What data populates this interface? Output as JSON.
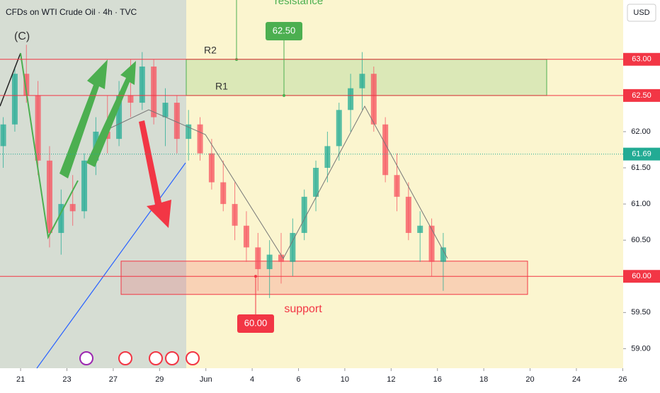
{
  "chart_data": {
    "type": "candlestick",
    "title": "CFDs on WTI Crude Oil · 4h · TVC",
    "currency": "USD",
    "wave_label": "(C)",
    "x": [
      -0.75,
      -0.25,
      0.25,
      0.75,
      1.25,
      1.75,
      2.25,
      2.75,
      3.25,
      3.75,
      4.25,
      4.75,
      5.25,
      5.75,
      6.25,
      6.75,
      7.25,
      7.75,
      8.25,
      8.75,
      9.25,
      9.75,
      10.25,
      10.75,
      11.25,
      11.75,
      12.25,
      12.75,
      13.25,
      13.75,
      14.25,
      14.75,
      15.25,
      15.75,
      16.25,
      16.75,
      17.25,
      17.75,
      18.25
    ],
    "open": [
      61.8,
      62.1,
      62.8,
      62.5,
      61.6,
      60.6,
      61.0,
      60.9,
      61.6,
      62.0,
      61.9,
      62.5,
      62.4,
      62.9,
      62.2,
      62.4,
      61.9,
      62.1,
      61.7,
      61.3,
      61.0,
      60.7,
      60.4,
      60.1,
      60.3,
      60.2,
      60.6,
      61.1,
      61.5,
      61.8,
      62.3,
      62.6,
      62.8,
      62.1,
      61.4,
      61.1,
      60.6,
      60.7,
      60.2
    ],
    "high": [
      62.2,
      62.9,
      63.2,
      62.7,
      61.8,
      61.2,
      61.4,
      61.7,
      62.2,
      62.5,
      62.7,
      63.0,
      63.1,
      63.0,
      62.6,
      62.5,
      62.3,
      62.2,
      61.9,
      61.6,
      61.3,
      60.9,
      60.6,
      60.5,
      60.6,
      60.8,
      61.2,
      61.6,
      62.0,
      62.4,
      62.8,
      63.1,
      62.9,
      62.2,
      61.7,
      61.3,
      60.9,
      60.8,
      60.6
    ],
    "low": [
      61.5,
      62.0,
      62.4,
      61.4,
      60.4,
      60.3,
      60.7,
      60.8,
      61.4,
      61.7,
      61.8,
      62.2,
      62.3,
      62.1,
      61.8,
      61.7,
      61.6,
      61.6,
      61.2,
      60.9,
      60.5,
      60.2,
      59.8,
      59.7,
      59.9,
      60.0,
      60.5,
      60.9,
      61.3,
      61.6,
      62.0,
      62.3,
      62.0,
      61.3,
      60.9,
      60.5,
      60.2,
      60.0,
      59.8
    ],
    "close": [
      62.1,
      62.8,
      62.5,
      61.6,
      60.6,
      61.0,
      60.9,
      61.6,
      62.0,
      61.9,
      62.5,
      62.4,
      62.9,
      62.2,
      62.4,
      61.9,
      62.1,
      61.7,
      61.3,
      61.0,
      60.7,
      60.4,
      60.1,
      60.3,
      60.2,
      60.6,
      61.1,
      61.5,
      61.8,
      62.3,
      62.6,
      62.8,
      62.1,
      61.4,
      61.1,
      60.6,
      60.7,
      60.2,
      60.4
    ],
    "up_color": "#22ab94",
    "down_color": "#f7525f",
    "xlim": [
      -0.89,
      26.02
    ],
    "xticks": [
      {
        "value": 0,
        "label": "21"
      },
      {
        "value": 2,
        "label": "23"
      },
      {
        "value": 4,
        "label": "27"
      },
      {
        "value": 6,
        "label": "29"
      },
      {
        "value": 8,
        "label": "Jun"
      },
      {
        "value": 10,
        "label": "4"
      },
      {
        "value": 12,
        "label": "6"
      },
      {
        "value": 14,
        "label": "10"
      },
      {
        "value": 16,
        "label": "12"
      },
      {
        "value": 18,
        "label": "16"
      },
      {
        "value": 20,
        "label": "18"
      },
      {
        "value": 22,
        "label": "20"
      },
      {
        "value": 24,
        "label": "24"
      },
      {
        "value": 26,
        "label": "26"
      }
    ],
    "ylim": [
      58.73,
      63.82
    ],
    "yticks": [
      {
        "value": 62,
        "label": "62.00"
      },
      {
        "value": 61.5,
        "label": "61.50"
      },
      {
        "value": 61,
        "label": "61.00"
      },
      {
        "value": 60.5,
        "label": "60.50"
      },
      {
        "value": 59.5,
        "label": "59.50"
      },
      {
        "value": 59,
        "label": "59.00"
      }
    ],
    "levels": [
      {
        "name": "R2",
        "value": 63,
        "label": "63.00",
        "color": "#f23645"
      },
      {
        "name": "R1",
        "value": 62.5,
        "label": "62.50",
        "color": "#f23645"
      },
      {
        "value": 61.69,
        "label": "61.69",
        "color": "#22ab94"
      },
      {
        "value": 60,
        "label": "60.00",
        "color": "#f23645"
      }
    ],
    "zones": [
      {
        "name": "resistance",
        "low": 62.5,
        "high": 63,
        "color": "#4caf50"
      },
      {
        "name": "support",
        "low": 59.75,
        "high": 60.21,
        "color": "#f23645"
      }
    ],
    "callouts": [
      {
        "value": 62.5,
        "label": "62.50",
        "color": "#4caf50"
      },
      {
        "value": 60,
        "label": "60.00",
        "color": "#f23645"
      }
    ]
  }
}
